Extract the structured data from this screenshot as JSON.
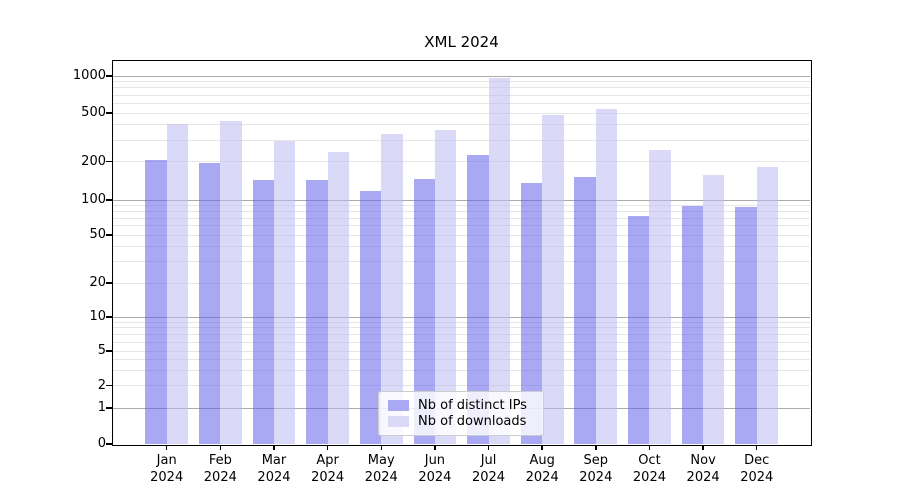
{
  "title": "XML 2024",
  "colors": {
    "ips_fill": "rgba(99,99,233,0.55)",
    "downloads_fill": "rgba(188,188,242,0.55)",
    "ips_solid": "#a9a9f3",
    "downloads_solid": "#dadaf8",
    "grid_major": "#ababab",
    "grid_minor": "#e6e6e6",
    "spine": "#000000",
    "background": "#ffffff"
  },
  "legend": {
    "items": [
      {
        "label": "Nb of distinct IPs",
        "series": "ips"
      },
      {
        "label": "Nb of downloads",
        "series": "downloads"
      }
    ]
  },
  "y_axis": {
    "ticks": [
      1000,
      500,
      200,
      100,
      50,
      20,
      10,
      5,
      2,
      1,
      0
    ],
    "scale": "symlog"
  },
  "x_axis": {
    "months": [
      "Jan",
      "Feb",
      "Mar",
      "Apr",
      "May",
      "Jun",
      "Jul",
      "Aug",
      "Sep",
      "Oct",
      "Nov",
      "Dec"
    ],
    "year": "2024"
  },
  "chart_data": {
    "type": "bar",
    "title": "XML 2024",
    "categories": [
      "Jan 2024",
      "Feb 2024",
      "Mar 2024",
      "Apr 2024",
      "May 2024",
      "Jun 2024",
      "Jul 2024",
      "Aug 2024",
      "Sep 2024",
      "Oct 2024",
      "Nov 2024",
      "Dec 2024"
    ],
    "series": [
      {
        "name": "Nb of distinct IPs",
        "values": [
          205,
          195,
          143,
          144,
          118,
          146,
          226,
          137,
          151,
          73,
          89,
          87
        ]
      },
      {
        "name": "Nb of downloads",
        "values": [
          410,
          430,
          295,
          240,
          335,
          360,
          960,
          485,
          540,
          250,
          157,
          182
        ]
      }
    ],
    "yscale": "symlog",
    "ylim": [
      0,
      1300
    ],
    "y_ticks": [
      0,
      1,
      2,
      5,
      10,
      20,
      50,
      100,
      200,
      500,
      1000
    ],
    "grid": true,
    "legend_position": "lower center"
  }
}
